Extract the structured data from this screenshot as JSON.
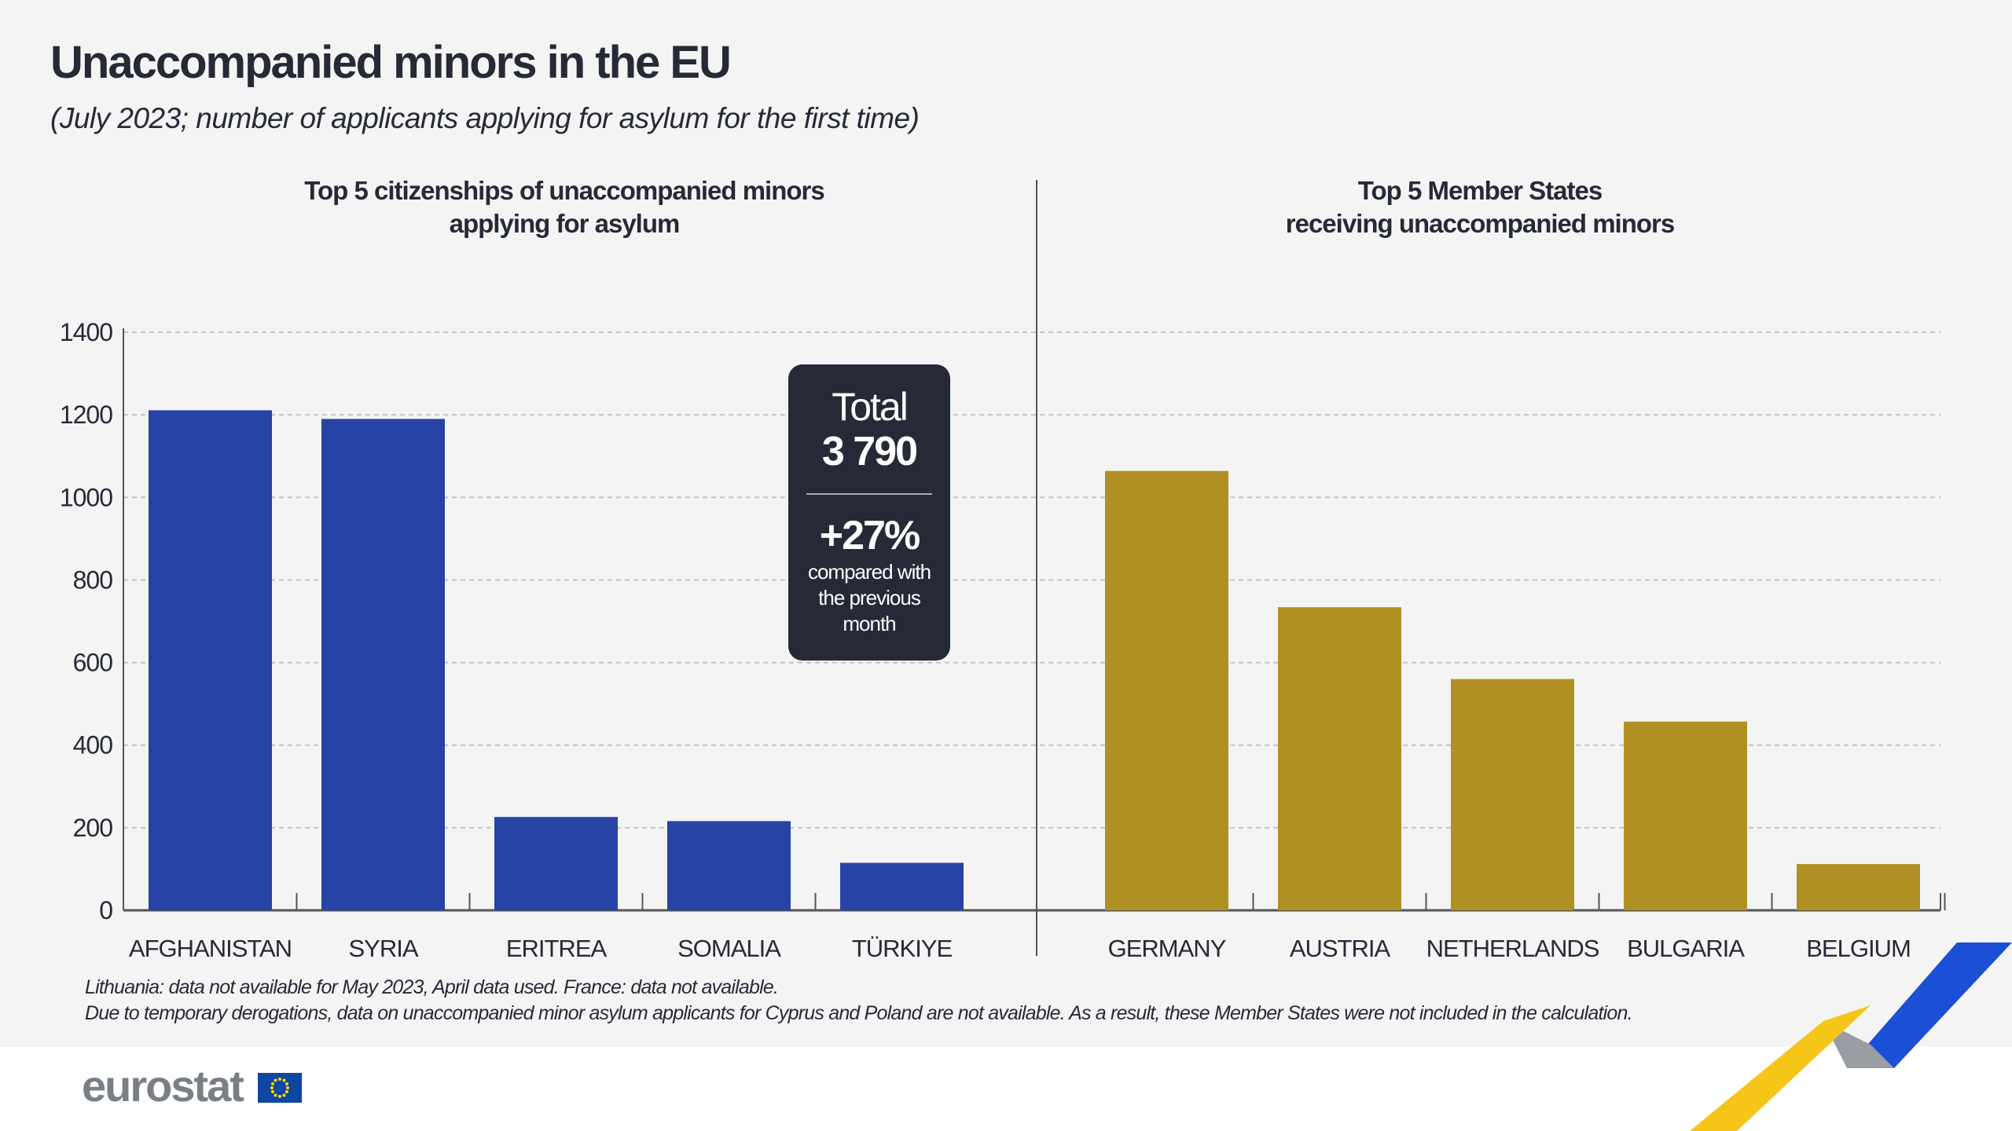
{
  "title": "Unaccompanied minors in the EU",
  "subtitle": "(July 2023; number of applicants applying for asylum for the first time)",
  "left_heading": [
    "Top 5 citizenships of unaccompanied minors",
    "applying for asylum"
  ],
  "right_heading": [
    "Top 5 Member States",
    "receiving unaccompanied minors"
  ],
  "callout": {
    "total_label": "Total",
    "total_value": "3 790",
    "change_value": "+27%",
    "change_text": "compared with the previous month"
  },
  "footnotes": [
    "Lithuania: data not available for May 2023, April data used. France: data not available.",
    "Due to temporary derogations, data on unaccompanied minor asylum applicants for Cyprus and Poland are not available.  As a result, these Member States were not included in the calculation."
  ],
  "logo": {
    "text": "eurostat"
  },
  "chart_data": [
    {
      "type": "bar",
      "title": "Top 5 citizenships of unaccompanied minors applying for asylum",
      "categories": [
        "AFGHANISTAN",
        "SYRIA",
        "ERITREA",
        "SOMALIA",
        "TÜRKIYE"
      ],
      "values": [
        1211,
        1190,
        226,
        216,
        115
      ],
      "color": "#2743a6",
      "ylim": [
        0,
        1400
      ],
      "yticks": [
        0,
        200,
        400,
        600,
        800,
        1000,
        1200,
        1400
      ],
      "grid": true
    },
    {
      "type": "bar",
      "title": "Top 5 Member States receiving unaccompanied minors",
      "categories": [
        "GERMANY",
        "AUSTRIA",
        "NETHERLANDS",
        "BULGARIA",
        "BELGIUM"
      ],
      "values": [
        1064,
        734,
        560,
        457,
        112
      ],
      "color": "#b09022",
      "ylim": [
        0,
        1400
      ],
      "grid": true
    }
  ]
}
